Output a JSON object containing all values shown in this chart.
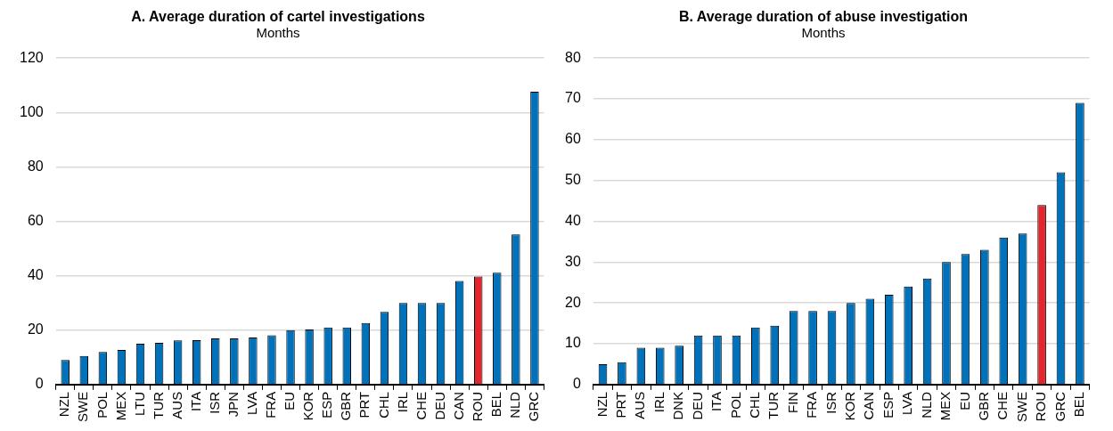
{
  "chart_data": [
    {
      "type": "bar",
      "title": "A. Average duration of cartel investigations",
      "subtitle": "Months",
      "categories": [
        "NZL",
        "SWE",
        "POL",
        "MEX",
        "LTU",
        "TUR",
        "AUS",
        "ITA",
        "ISR",
        "JPN",
        "LVA",
        "FRA",
        "EU",
        "KOR",
        "ESP",
        "GBR",
        "PRT",
        "CHL",
        "IRL",
        "CHE",
        "DEU",
        "CAN",
        "ROU",
        "BEL",
        "NLD",
        "GRC"
      ],
      "values": [
        9,
        10.5,
        12,
        12.7,
        15,
        15.3,
        16.2,
        16.3,
        17,
        17,
        17.3,
        18.1,
        20,
        20.2,
        21,
        21,
        22.6,
        26.7,
        30,
        30,
        30,
        38.1,
        39.7,
        41.1,
        55.2,
        107.6
      ],
      "colors": [
        "#0072bc",
        "#0072bc",
        "#0072bc",
        "#0072bc",
        "#0072bc",
        "#0072bc",
        "#0072bc",
        "#0072bc",
        "#0072bc",
        "#0072bc",
        "#0072bc",
        "#0072bc",
        "#0072bc",
        "#0072bc",
        "#0072bc",
        "#0072bc",
        "#0072bc",
        "#0072bc",
        "#0072bc",
        "#0072bc",
        "#0072bc",
        "#0072bc",
        "#e3262b",
        "#0072bc",
        "#0072bc",
        "#0072bc"
      ],
      "ylim": [
        0,
        120
      ],
      "yticks": [
        0,
        20,
        40,
        60,
        80,
        100,
        120
      ],
      "grid": "y",
      "legend": false
    },
    {
      "type": "bar",
      "title": "B. Average duration of abuse investigation",
      "subtitle": "Months",
      "categories": [
        "NZL",
        "PRT",
        "AUS",
        "IRL",
        "DNK",
        "DEU",
        "ITA",
        "POL",
        "CHL",
        "TUR",
        "FIN",
        "FRA",
        "ISR",
        "KOR",
        "CAN",
        "ESP",
        "LVA",
        "NLD",
        "MEX",
        "EU",
        "GBR",
        "CHE",
        "SWE",
        "ROU",
        "GRC",
        "BEL"
      ],
      "values": [
        5,
        5.5,
        9,
        9,
        9.5,
        12,
        12,
        12,
        14,
        14.4,
        18,
        18,
        18,
        20,
        21,
        22,
        24,
        26,
        30,
        32,
        33,
        36,
        37,
        44,
        52,
        69
      ],
      "colors": [
        "#0072bc",
        "#0072bc",
        "#0072bc",
        "#0072bc",
        "#0072bc",
        "#0072bc",
        "#0072bc",
        "#0072bc",
        "#0072bc",
        "#0072bc",
        "#0072bc",
        "#0072bc",
        "#0072bc",
        "#0072bc",
        "#0072bc",
        "#0072bc",
        "#0072bc",
        "#0072bc",
        "#0072bc",
        "#0072bc",
        "#0072bc",
        "#0072bc",
        "#0072bc",
        "#e3262b",
        "#0072bc",
        "#0072bc"
      ],
      "ylim": [
        0,
        80
      ],
      "yticks": [
        0,
        10,
        20,
        30,
        40,
        50,
        60,
        70,
        80
      ],
      "grid": "y",
      "legend": false
    }
  ]
}
